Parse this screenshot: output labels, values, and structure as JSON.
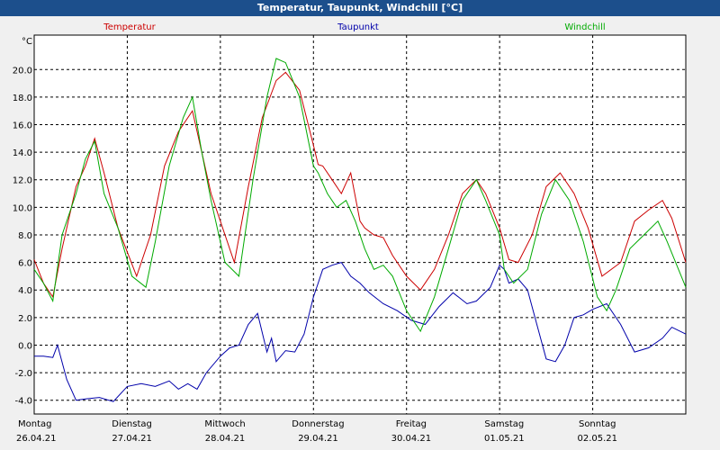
{
  "title": "Temperatur, Taupunkt, Windchill [°C]",
  "chart_data": {
    "type": "line",
    "title": "Temperatur, Taupunkt, Windchill [°C]",
    "ylabel": "°C",
    "ylim": [
      -5,
      22.5
    ],
    "yticks": [
      20.0,
      18.0,
      16.0,
      14.0,
      12.0,
      10.0,
      8.0,
      6.0,
      4.0,
      2.0,
      0.0,
      -2.0,
      -4.0
    ],
    "xlim": [
      0,
      7
    ],
    "x_categories": [
      {
        "day": "Montag",
        "date": "26.04.21"
      },
      {
        "day": "Dienstag",
        "date": "27.04.21"
      },
      {
        "day": "Mittwoch",
        "date": "28.04.21"
      },
      {
        "day": "Donnerstag",
        "date": "29.04.21"
      },
      {
        "day": "Freitag",
        "date": "30.04.21"
      },
      {
        "day": "Samstag",
        "date": "01.05.21"
      },
      {
        "day": "Sonntag",
        "date": "02.05.21"
      }
    ],
    "grid": true,
    "series": [
      {
        "name": "Temperatur",
        "color": "#cc0000",
        "x": [
          0,
          0.1,
          0.2,
          0.3,
          0.45,
          0.55,
          0.65,
          0.75,
          0.9,
          1.1,
          1.25,
          1.4,
          1.55,
          1.7,
          1.8,
          1.9,
          2.05,
          2.15,
          2.3,
          2.45,
          2.6,
          2.7,
          2.85,
          3.0,
          3.05,
          3.1,
          3.2,
          3.3,
          3.4,
          3.5,
          3.55,
          3.65,
          3.75,
          3.85,
          4.0,
          4.15,
          4.3,
          4.45,
          4.6,
          4.75,
          4.85,
          5.0,
          5.1,
          5.2,
          5.35,
          5.5,
          5.65,
          5.8,
          5.95,
          6.1,
          6.3,
          6.45,
          6.6,
          6.75,
          6.85,
          7.0
        ],
        "y": [
          6.2,
          4.5,
          3.5,
          7.0,
          11.5,
          13.0,
          15.0,
          12.5,
          8.5,
          5.0,
          8.0,
          13.0,
          15.5,
          17.0,
          14.0,
          11.0,
          8.0,
          6.0,
          11.5,
          16.5,
          19.2,
          19.8,
          18.5,
          14.5,
          13.1,
          13.0,
          12.0,
          11.0,
          12.5,
          9.0,
          8.5,
          8.0,
          7.8,
          6.5,
          5.0,
          4.0,
          5.5,
          8.0,
          11.0,
          12.0,
          11.0,
          8.5,
          6.2,
          6.0,
          8.0,
          11.5,
          12.5,
          11.0,
          8.5,
          5.0,
          6.0,
          9.0,
          9.8,
          10.5,
          9.2,
          6.0
        ]
      },
      {
        "name": "Taupunkt",
        "color": "#0000aa",
        "x": [
          0,
          0.1,
          0.2,
          0.25,
          0.35,
          0.45,
          0.55,
          0.7,
          0.85,
          1.0,
          1.15,
          1.3,
          1.45,
          1.55,
          1.65,
          1.75,
          1.85,
          2.0,
          2.1,
          2.2,
          2.3,
          2.4,
          2.5,
          2.55,
          2.6,
          2.7,
          2.8,
          2.9,
          3.0,
          3.05,
          3.1,
          3.2,
          3.3,
          3.4,
          3.5,
          3.6,
          3.75,
          3.9,
          4.05,
          4.2,
          4.35,
          4.5,
          4.65,
          4.75,
          4.9,
          5.0,
          5.05,
          5.1,
          5.2,
          5.3,
          5.4,
          5.5,
          5.6,
          5.7,
          5.8,
          5.9,
          6.0,
          6.15,
          6.3,
          6.45,
          6.6,
          6.75,
          6.85,
          7.0
        ],
        "y": [
          -0.8,
          -0.8,
          -0.9,
          0.0,
          -2.5,
          -4.0,
          -3.9,
          -3.8,
          -4.1,
          -3.0,
          -2.8,
          -3.0,
          -2.6,
          -3.2,
          -2.8,
          -3.2,
          -2.0,
          -0.8,
          -0.2,
          0.0,
          1.5,
          2.3,
          -0.5,
          0.5,
          -1.2,
          -0.4,
          -0.5,
          0.8,
          3.5,
          4.5,
          5.5,
          5.8,
          6.0,
          5.0,
          4.5,
          3.8,
          3.0,
          2.5,
          1.8,
          1.5,
          2.8,
          3.8,
          3.0,
          3.2,
          4.2,
          5.8,
          5.5,
          4.5,
          4.8,
          4.0,
          1.5,
          -1.0,
          -1.2,
          0.0,
          2.0,
          2.2,
          2.6,
          3.0,
          1.5,
          -0.5,
          -0.2,
          0.5,
          1.3,
          0.8
        ]
      },
      {
        "name": "Windchill",
        "color": "#00aa00",
        "x": [
          0,
          0.1,
          0.2,
          0.3,
          0.45,
          0.55,
          0.65,
          0.75,
          0.9,
          1.05,
          1.2,
          1.3,
          1.45,
          1.6,
          1.7,
          1.8,
          1.9,
          2.05,
          2.2,
          2.35,
          2.5,
          2.6,
          2.7,
          2.85,
          3.0,
          3.05,
          3.15,
          3.25,
          3.35,
          3.45,
          3.55,
          3.65,
          3.75,
          3.85,
          4.0,
          4.15,
          4.3,
          4.45,
          4.6,
          4.75,
          4.85,
          5.0,
          5.05,
          5.15,
          5.3,
          5.45,
          5.6,
          5.75,
          5.9,
          6.05,
          6.15,
          6.25,
          6.4,
          6.55,
          6.7,
          6.8,
          7.0
        ],
        "y": [
          5.5,
          4.5,
          3.2,
          8.0,
          11.0,
          13.5,
          14.8,
          11.0,
          8.5,
          5.0,
          4.2,
          7.5,
          13.0,
          16.5,
          18.0,
          14.0,
          10.5,
          6.0,
          5.0,
          12.0,
          18.0,
          20.8,
          20.5,
          18.0,
          13.0,
          12.5,
          11.0,
          10.0,
          10.5,
          9.0,
          7.0,
          5.5,
          5.8,
          5.0,
          2.5,
          1.0,
          3.5,
          7.0,
          10.5,
          12.0,
          10.5,
          8.0,
          5.5,
          4.5,
          5.5,
          9.5,
          12.0,
          10.5,
          7.5,
          3.5,
          2.5,
          4.0,
          7.0,
          8.0,
          9.0,
          7.5,
          4.2
        ]
      }
    ],
    "legend": [
      "Temperatur",
      "Taupunkt",
      "Windchill"
    ],
    "legend_position": "top"
  }
}
